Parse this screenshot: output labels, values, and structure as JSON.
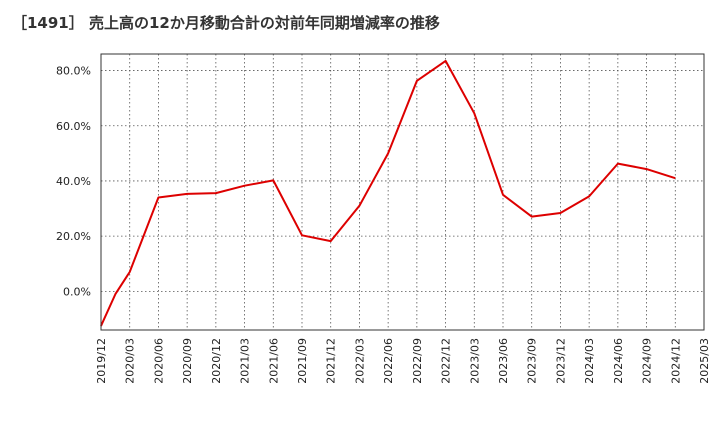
{
  "chart_data": {
    "type": "line",
    "title": "［1491］ 売上高の12か月移動合計の対前年同期増減率の推移",
    "xlabel": "",
    "ylabel": "",
    "ylim": [
      -14,
      86
    ],
    "yticks": [
      0,
      20,
      40,
      60,
      80
    ],
    "ytick_labels": [
      "0.0%",
      "20.0%",
      "40.0%",
      "60.0%",
      "80.0%"
    ],
    "x_tick_labels": [
      "2019/12",
      "2020/03",
      "2020/06",
      "2020/09",
      "2020/12",
      "2021/03",
      "2021/06",
      "2021/09",
      "2021/12",
      "2022/03",
      "2022/06",
      "2022/09",
      "2022/12",
      "2023/03",
      "2023/06",
      "2023/09",
      "2023/12",
      "2024/03",
      "2024/06",
      "2024/09",
      "2024/12",
      "2025/03"
    ],
    "grid": true,
    "series": [
      {
        "name": "増減率",
        "color": "#dd0000",
        "x_index": [
          0,
          0.5,
          1,
          2,
          3,
          4,
          5,
          6,
          7,
          8,
          9,
          10,
          11,
          12,
          13,
          14,
          15,
          16,
          17,
          18,
          19,
          20
        ],
        "values": [
          -12.5,
          -1,
          7,
          34,
          35.3,
          35.6,
          38.3,
          40.2,
          20.3,
          18.2,
          31,
          50,
          76.3,
          83.5,
          64.5,
          35,
          27.1,
          28.4,
          34.4,
          46.3,
          44.3,
          41
        ]
      }
    ]
  }
}
